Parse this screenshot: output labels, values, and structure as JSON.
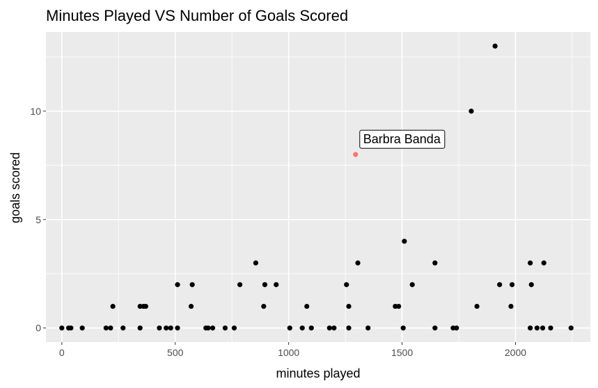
{
  "chart_data": {
    "type": "scatter",
    "title": "Minutes Played VS Number of Goals Scored",
    "xlabel": "minutes played",
    "ylabel": "goals scored",
    "xlim": [
      -70,
      2330
    ],
    "ylim": [
      -0.65,
      13.65
    ],
    "x_ticks": [
      0,
      500,
      1000,
      1500,
      2000
    ],
    "x_tick_labels": [
      "0",
      "500",
      "1000",
      "1500",
      "2000"
    ],
    "x_minor_ticks": [
      250,
      750,
      1250,
      1750,
      2250
    ],
    "y_ticks": [
      0,
      5,
      10
    ],
    "y_tick_labels": [
      "0",
      "5",
      "10"
    ],
    "y_minor_ticks": [
      2.5,
      7.5,
      12.5
    ],
    "grid": true,
    "background_color": "#ebebeb",
    "point_color": "#000000",
    "highlight_color": "#f8766d",
    "points": [
      {
        "x": 0,
        "y": 0
      },
      {
        "x": 30,
        "y": 0
      },
      {
        "x": 40,
        "y": 0
      },
      {
        "x": 90,
        "y": 0
      },
      {
        "x": 195,
        "y": 0
      },
      {
        "x": 215,
        "y": 0
      },
      {
        "x": 225,
        "y": 1
      },
      {
        "x": 270,
        "y": 0
      },
      {
        "x": 345,
        "y": 1
      },
      {
        "x": 345,
        "y": 0
      },
      {
        "x": 360,
        "y": 1
      },
      {
        "x": 370,
        "y": 1
      },
      {
        "x": 430,
        "y": 0
      },
      {
        "x": 460,
        "y": 0
      },
      {
        "x": 480,
        "y": 0
      },
      {
        "x": 510,
        "y": 2
      },
      {
        "x": 510,
        "y": 0
      },
      {
        "x": 570,
        "y": 1
      },
      {
        "x": 575,
        "y": 2
      },
      {
        "x": 635,
        "y": 0
      },
      {
        "x": 645,
        "y": 0
      },
      {
        "x": 665,
        "y": 0
      },
      {
        "x": 720,
        "y": 0
      },
      {
        "x": 760,
        "y": 0
      },
      {
        "x": 785,
        "y": 2
      },
      {
        "x": 855,
        "y": 3
      },
      {
        "x": 890,
        "y": 1
      },
      {
        "x": 895,
        "y": 2
      },
      {
        "x": 945,
        "y": 2
      },
      {
        "x": 1005,
        "y": 0
      },
      {
        "x": 1060,
        "y": 0
      },
      {
        "x": 1080,
        "y": 1
      },
      {
        "x": 1100,
        "y": 0
      },
      {
        "x": 1180,
        "y": 0
      },
      {
        "x": 1200,
        "y": 0
      },
      {
        "x": 1255,
        "y": 2
      },
      {
        "x": 1265,
        "y": 1
      },
      {
        "x": 1265,
        "y": 0
      },
      {
        "x": 1305,
        "y": 3
      },
      {
        "x": 1350,
        "y": 0
      },
      {
        "x": 1470,
        "y": 1
      },
      {
        "x": 1485,
        "y": 1
      },
      {
        "x": 1505,
        "y": 0
      },
      {
        "x": 1510,
        "y": 4
      },
      {
        "x": 1545,
        "y": 2
      },
      {
        "x": 1645,
        "y": 3
      },
      {
        "x": 1645,
        "y": 0
      },
      {
        "x": 1725,
        "y": 0
      },
      {
        "x": 1740,
        "y": 0
      },
      {
        "x": 1805,
        "y": 10
      },
      {
        "x": 1830,
        "y": 1
      },
      {
        "x": 1910,
        "y": 13
      },
      {
        "x": 1930,
        "y": 2
      },
      {
        "x": 1980,
        "y": 1
      },
      {
        "x": 1985,
        "y": 2
      },
      {
        "x": 2065,
        "y": 3
      },
      {
        "x": 2065,
        "y": 0
      },
      {
        "x": 2070,
        "y": 2
      },
      {
        "x": 2095,
        "y": 0
      },
      {
        "x": 2120,
        "y": 0
      },
      {
        "x": 2125,
        "y": 3
      },
      {
        "x": 2155,
        "y": 0
      },
      {
        "x": 2245,
        "y": 0
      }
    ],
    "highlighted_point": {
      "x": 1295,
      "y": 8,
      "label": "Barbra Banda"
    }
  }
}
